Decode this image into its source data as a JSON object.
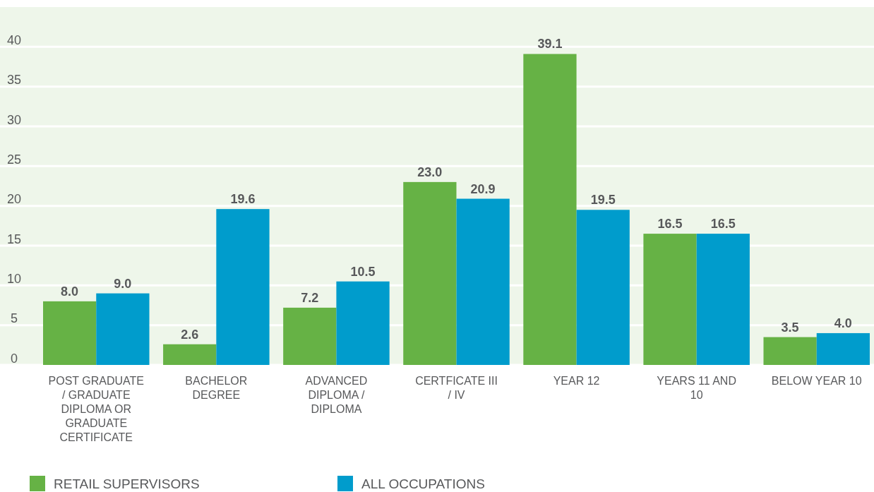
{
  "chart_data": {
    "type": "bar",
    "categories": [
      "POST GRADUATE / GRADUATE DIPLOMA OR GRADUATE CERTIFICATE",
      "BACHELOR DEGREE",
      "ADVANCED DIPLOMA / DIPLOMA",
      "CERTFICATE III / IV",
      "YEAR 12",
      "YEARS 11 AND 10",
      "BELOW YEAR 10"
    ],
    "series": [
      {
        "name": "RETAIL SUPERVISORS",
        "color": "#66b245",
        "values": [
          8.0,
          2.6,
          7.2,
          23.0,
          39.1,
          16.5,
          3.5
        ],
        "value_labels": [
          "8.0",
          "2.6",
          "7.2",
          "23.0",
          "39.1",
          "16.5",
          "3.5"
        ]
      },
      {
        "name": "ALL OCCUPATIONS",
        "color": "#009ccc",
        "values": [
          9.0,
          19.6,
          10.5,
          20.9,
          19.5,
          16.5,
          4.0
        ],
        "value_labels": [
          "9.0",
          "19.6",
          "10.5",
          "20.9",
          "19.5",
          "16.5",
          "4.0"
        ]
      }
    ],
    "ylim": [
      0,
      45
    ],
    "yticks": [
      0,
      5,
      10,
      15,
      20,
      25,
      30,
      35,
      40
    ],
    "grid": "y",
    "legend": "bottom left"
  }
}
